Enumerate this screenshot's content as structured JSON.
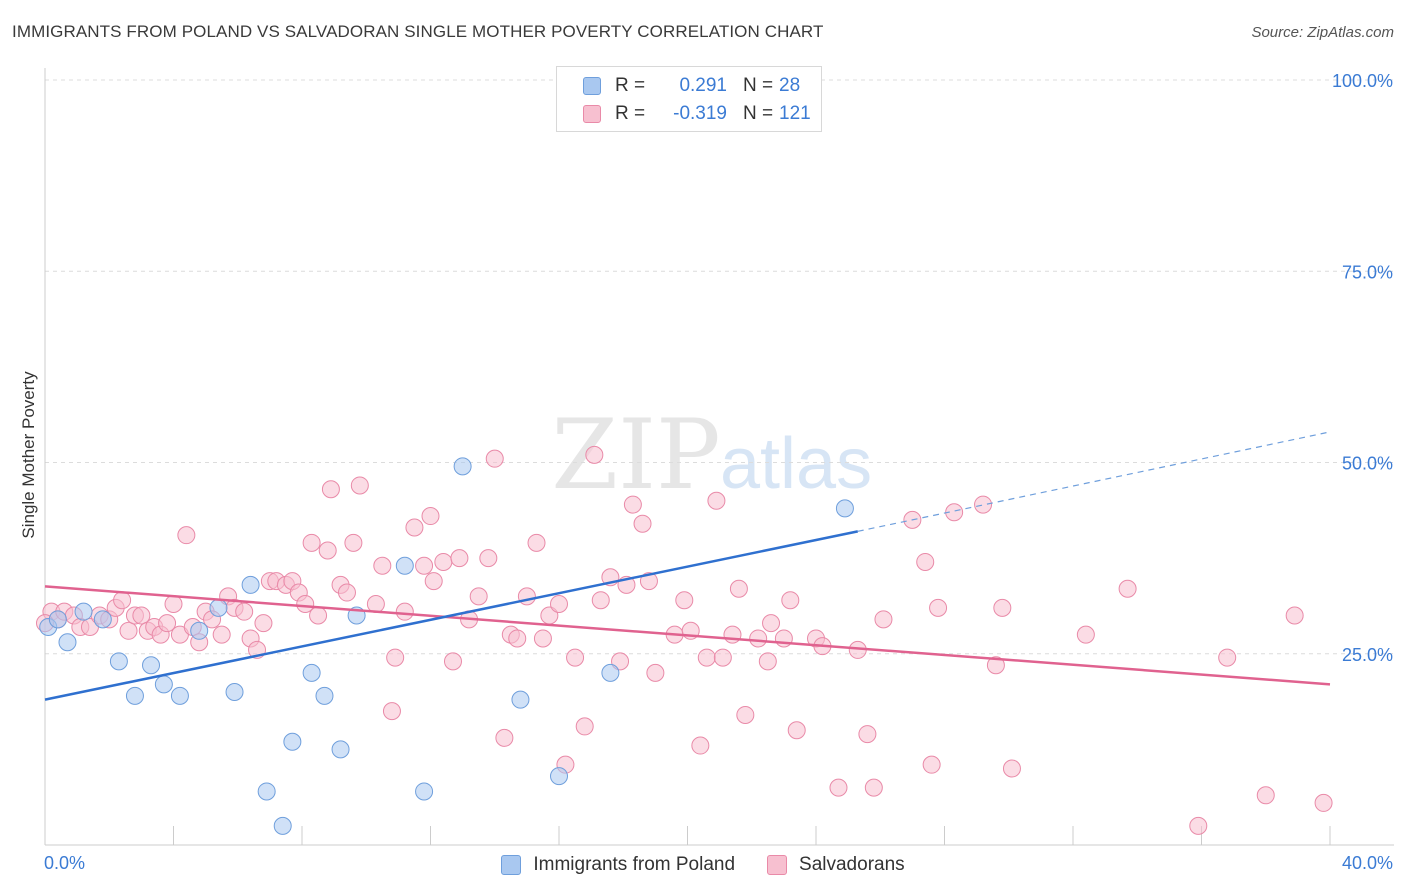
{
  "title": "IMMIGRANTS FROM POLAND VS SALVADORAN SINGLE MOTHER POVERTY CORRELATION CHART",
  "source": "Source: ZipAtlas.com",
  "watermark": {
    "zip": "ZIP",
    "atlas": "atlas"
  },
  "legend_stats": [
    {
      "r_label": "R =",
      "r_value": "0.291",
      "n_label": "N =",
      "n_value": "28",
      "color": "#a9c8f0",
      "border": "#6f9fdc"
    },
    {
      "r_label": "R =",
      "r_value": "-0.319",
      "n_label": "N =",
      "n_value": "121",
      "color": "#f7c0d0",
      "border": "#e98aa8"
    }
  ],
  "legend_bottom": [
    {
      "label": "Immigrants from Poland",
      "color": "#a9c8f0",
      "border": "#6f9fdc"
    },
    {
      "label": "Salvadorans",
      "color": "#f7c0d0",
      "border": "#e98aa8"
    }
  ],
  "chart_data": {
    "type": "scatter",
    "ylabel": "Single Mother Poverty",
    "xlim": [
      0,
      40
    ],
    "ylim": [
      0,
      100
    ],
    "x_tick_labels": [
      {
        "value": 0,
        "label": "0.0%"
      },
      {
        "value": 40,
        "label": "40.0%"
      }
    ],
    "y_tick_labels": [
      {
        "value": 100,
        "label": "100.0%"
      },
      {
        "value": 75,
        "label": "75.0%"
      },
      {
        "value": 50,
        "label": "50.0%"
      },
      {
        "value": 25,
        "label": "25.0%"
      }
    ],
    "grid": true,
    "series": [
      {
        "name": "Immigrants from Poland",
        "color": "#6f9fdc",
        "fill": "#a9c8f0",
        "trend": {
          "x0": 0,
          "y0": 19,
          "x1": 25.3,
          "y1": 41,
          "dashed_to_x": 40,
          "dashed_to_y": 54
        },
        "points": [
          [
            0.1,
            28.5
          ],
          [
            0.4,
            29.5
          ],
          [
            0.7,
            26.5
          ],
          [
            1.2,
            30.5
          ],
          [
            1.8,
            29.5
          ],
          [
            2.3,
            24.0
          ],
          [
            2.8,
            19.5
          ],
          [
            3.3,
            23.5
          ],
          [
            3.7,
            21.0
          ],
          [
            4.2,
            19.5
          ],
          [
            4.8,
            28.0
          ],
          [
            5.4,
            31.0
          ],
          [
            5.9,
            20.0
          ],
          [
            6.4,
            34.0
          ],
          [
            6.9,
            7.0
          ],
          [
            7.4,
            2.5
          ],
          [
            7.7,
            13.5
          ],
          [
            8.3,
            22.5
          ],
          [
            8.7,
            19.5
          ],
          [
            9.2,
            12.5
          ],
          [
            9.7,
            30.0
          ],
          [
            11.2,
            36.5
          ],
          [
            11.8,
            7.0
          ],
          [
            13.0,
            49.5
          ],
          [
            14.8,
            19.0
          ],
          [
            16.0,
            9.0
          ],
          [
            17.6,
            22.5
          ],
          [
            24.9,
            44.0
          ]
        ]
      },
      {
        "name": "Salvadorans",
        "color": "#e98aa8",
        "fill": "#f7c0d0",
        "trend": {
          "x0": 0,
          "y0": 33.8,
          "x1": 40,
          "y1": 21.0
        },
        "points": [
          [
            0.2,
            30.5
          ],
          [
            0.4,
            29.5
          ],
          [
            0.6,
            30.5
          ],
          [
            0.9,
            30.0
          ],
          [
            1.1,
            28.5
          ],
          [
            1.4,
            28.5
          ],
          [
            1.7,
            30.0
          ],
          [
            2.0,
            29.5
          ],
          [
            2.2,
            31.0
          ],
          [
            2.4,
            32.0
          ],
          [
            2.6,
            28.0
          ],
          [
            2.8,
            30.0
          ],
          [
            3.0,
            30.0
          ],
          [
            3.2,
            28.0
          ],
          [
            3.4,
            28.5
          ],
          [
            3.6,
            27.5
          ],
          [
            3.8,
            29.0
          ],
          [
            4.0,
            31.5
          ],
          [
            4.2,
            27.5
          ],
          [
            4.4,
            40.5
          ],
          [
            4.6,
            28.5
          ],
          [
            4.8,
            26.5
          ],
          [
            5.0,
            30.5
          ],
          [
            5.2,
            29.5
          ],
          [
            5.5,
            27.5
          ],
          [
            5.7,
            32.5
          ],
          [
            5.9,
            31.0
          ],
          [
            6.2,
            30.5
          ],
          [
            6.4,
            27.0
          ],
          [
            6.6,
            25.5
          ],
          [
            6.8,
            29.0
          ],
          [
            7.0,
            34.5
          ],
          [
            7.2,
            34.5
          ],
          [
            7.5,
            34.0
          ],
          [
            7.7,
            34.5
          ],
          [
            7.9,
            33.0
          ],
          [
            8.1,
            31.5
          ],
          [
            8.3,
            39.5
          ],
          [
            8.5,
            30.0
          ],
          [
            8.8,
            38.5
          ],
          [
            8.9,
            46.5
          ],
          [
            9.2,
            34.0
          ],
          [
            9.4,
            33.0
          ],
          [
            9.6,
            39.5
          ],
          [
            9.8,
            47.0
          ],
          [
            10.3,
            31.5
          ],
          [
            10.5,
            36.5
          ],
          [
            10.8,
            17.5
          ],
          [
            10.9,
            24.5
          ],
          [
            11.2,
            30.5
          ],
          [
            11.5,
            41.5
          ],
          [
            11.8,
            36.5
          ],
          [
            12.0,
            43.0
          ],
          [
            12.1,
            34.5
          ],
          [
            12.4,
            37.0
          ],
          [
            12.7,
            24.0
          ],
          [
            12.9,
            37.5
          ],
          [
            13.2,
            29.5
          ],
          [
            13.5,
            32.5
          ],
          [
            13.8,
            37.5
          ],
          [
            14.0,
            50.5
          ],
          [
            14.3,
            14.0
          ],
          [
            14.5,
            27.5
          ],
          [
            14.7,
            27.0
          ],
          [
            15.0,
            32.5
          ],
          [
            15.3,
            39.5
          ],
          [
            15.5,
            27.0
          ],
          [
            15.7,
            30.0
          ],
          [
            16.0,
            31.5
          ],
          [
            16.2,
            10.5
          ],
          [
            16.5,
            24.5
          ],
          [
            16.8,
            15.5
          ],
          [
            17.1,
            51.0
          ],
          [
            17.3,
            32.0
          ],
          [
            17.6,
            35.0
          ],
          [
            17.9,
            24.0
          ],
          [
            18.1,
            34.0
          ],
          [
            18.3,
            44.5
          ],
          [
            18.6,
            42.0
          ],
          [
            18.8,
            34.5
          ],
          [
            19.0,
            22.5
          ],
          [
            19.6,
            27.5
          ],
          [
            19.9,
            32.0
          ],
          [
            20.1,
            28.0
          ],
          [
            20.4,
            13.0
          ],
          [
            20.6,
            24.5
          ],
          [
            20.9,
            45.0
          ],
          [
            21.1,
            24.5
          ],
          [
            21.4,
            27.5
          ],
          [
            21.6,
            33.5
          ],
          [
            21.8,
            17.0
          ],
          [
            22.2,
            27.0
          ],
          [
            22.5,
            24.0
          ],
          [
            22.6,
            29.0
          ],
          [
            23.0,
            27.0
          ],
          [
            23.2,
            32.0
          ],
          [
            23.4,
            15.0
          ],
          [
            24.0,
            27.0
          ],
          [
            24.2,
            26.0
          ],
          [
            24.7,
            7.5
          ],
          [
            25.3,
            25.5
          ],
          [
            25.6,
            14.5
          ],
          [
            25.8,
            7.5
          ],
          [
            26.1,
            29.5
          ],
          [
            27.0,
            42.5
          ],
          [
            27.4,
            37.0
          ],
          [
            27.6,
            10.5
          ],
          [
            27.8,
            31.0
          ],
          [
            28.3,
            43.5
          ],
          [
            29.2,
            44.5
          ],
          [
            29.6,
            23.5
          ],
          [
            29.8,
            31.0
          ],
          [
            30.1,
            10.0
          ],
          [
            32.4,
            27.5
          ],
          [
            33.7,
            33.5
          ],
          [
            35.9,
            2.5
          ],
          [
            36.8,
            24.5
          ],
          [
            38.0,
            6.5
          ],
          [
            38.9,
            30.0
          ],
          [
            39.8,
            5.5
          ],
          [
            0.0,
            29.0
          ]
        ]
      }
    ]
  }
}
